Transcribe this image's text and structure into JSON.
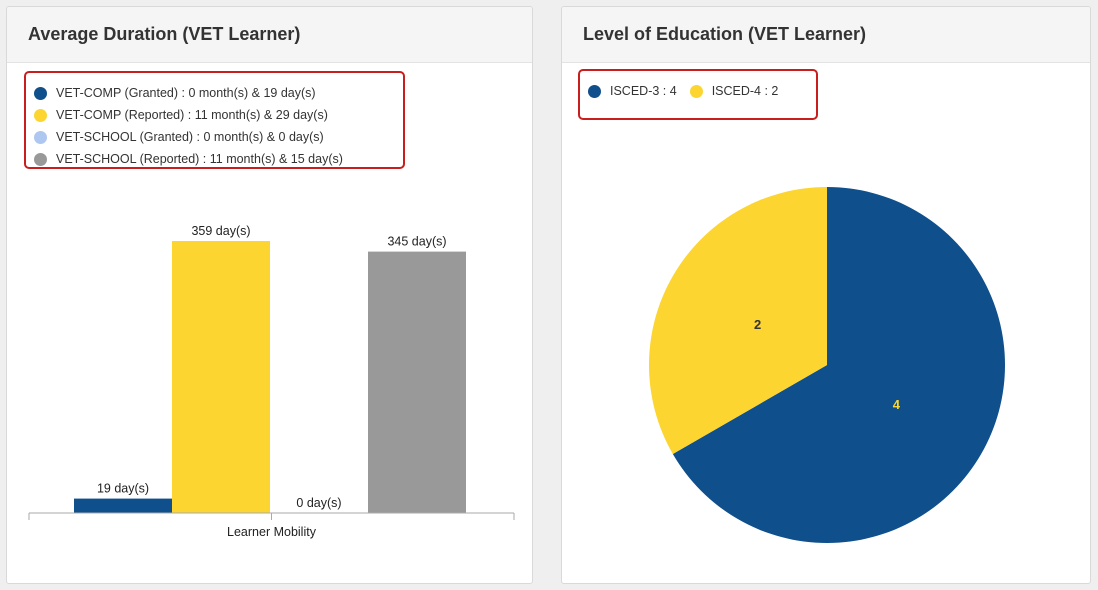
{
  "chart_data": [
    {
      "type": "bar",
      "title": "Average Duration (VET Learner)",
      "categories": [
        "Learner Mobility"
      ],
      "series": [
        {
          "name": "VET-COMP (Granted) : 0 month(s) & 19 day(s)",
          "values": [
            19
          ],
          "label": "19 day(s)",
          "color": "#0f4f8c"
        },
        {
          "name": "VET-COMP (Reported) : 11 month(s) & 29 day(s)",
          "values": [
            359
          ],
          "label": "359 day(s)",
          "color": "#fcd531"
        },
        {
          "name": "VET-SCHOOL (Granted) : 0 month(s) & 0 day(s)",
          "values": [
            0
          ],
          "label": "0 day(s)",
          "color": "#aec7f0"
        },
        {
          "name": "VET-SCHOOL (Reported) : 11 month(s) & 15 day(s)",
          "values": [
            345
          ],
          "label": "345 day(s)",
          "color": "#999999"
        }
      ],
      "legend_placement": "top-left",
      "grid": false
    },
    {
      "type": "pie",
      "title": "Level of Education (VET Learner)",
      "slices": [
        {
          "name": "ISCED-3 : 4",
          "value": 4,
          "label": "4",
          "color": "#0f4f8c",
          "label_color": "#fcd531"
        },
        {
          "name": "ISCED-4 : 2",
          "value": 2,
          "label": "2",
          "color": "#fcd531",
          "label_color": "#333333"
        }
      ],
      "legend_placement": "top-left"
    }
  ]
}
